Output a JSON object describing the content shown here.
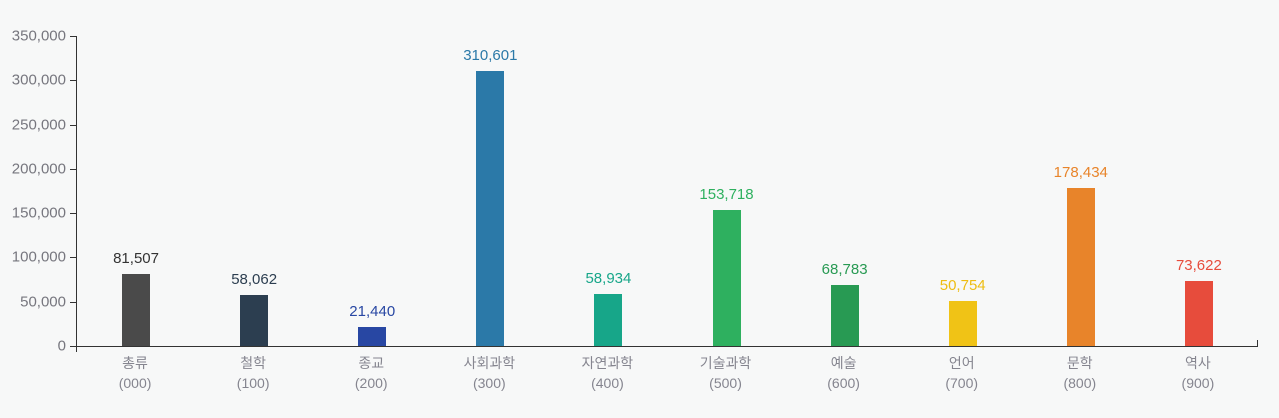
{
  "background_color": "#f7f8f8",
  "axis": {
    "line_color": "#333333",
    "ytick_label_color": "#76767e",
    "category_label_color": "#85858f"
  },
  "chart_data": {
    "type": "bar",
    "title": "",
    "xlabel": "",
    "ylabel": "",
    "ylim": [
      0,
      350000
    ],
    "ytick_step": 50000,
    "ytick_labels": [
      "0",
      "50,000",
      "100,000",
      "150,000",
      "200,000",
      "250,000",
      "300,000",
      "350,000"
    ],
    "grid": false,
    "legend": false,
    "categories": [
      "총류",
      "철학",
      "종교",
      "사회과학",
      "자연과학",
      "기술과학",
      "예술",
      "언어",
      "문학",
      "역사"
    ],
    "category_codes": [
      "(000)",
      "(100)",
      "(200)",
      "(300)",
      "(400)",
      "(500)",
      "(600)",
      "(700)",
      "(800)",
      "(900)"
    ],
    "values": [
      81507,
      58062,
      21440,
      310601,
      58934,
      153718,
      68783,
      50754,
      178434,
      73622
    ],
    "value_labels": [
      "81,507",
      "58,062",
      "21,440",
      "310,601",
      "58,934",
      "153,718",
      "68,783",
      "50,754",
      "178,434",
      "73,622"
    ],
    "bar_colors": [
      "#4a4a4a",
      "#2c3e50",
      "#2847a3",
      "#2b79a8",
      "#17a689",
      "#2eb05f",
      "#289a53",
      "#f0c316",
      "#e8842a",
      "#e74c3c"
    ],
    "value_label_colors": [
      "#333333",
      "#2c3e50",
      "#2847a3",
      "#2b79a8",
      "#17a689",
      "#2eb05f",
      "#289a53",
      "#eebd12",
      "#e8842a",
      "#e74c3c"
    ]
  }
}
